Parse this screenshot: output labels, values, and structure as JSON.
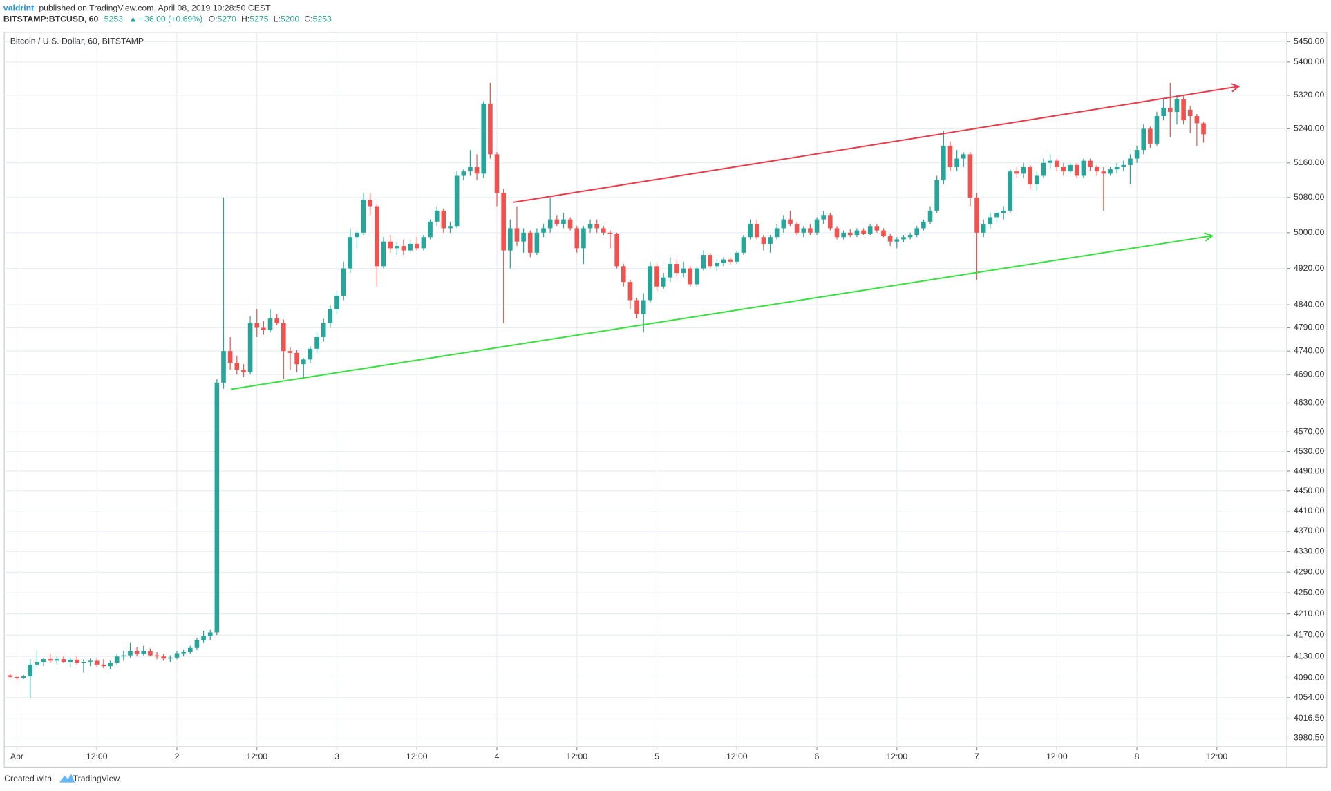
{
  "header": {
    "author": "valdrint",
    "published": "published on TradingView.com, April 08, 2019 10:28:50 CEST",
    "symbol": "BITSTAMP:BTCUSD, 60",
    "change": "▲ +36.00 (+0.69%)",
    "ohlc_labels": [
      "O:",
      "H:",
      "L:",
      "C:"
    ]
  },
  "footer": {
    "created": "Created with",
    "brand": "TradingView"
  },
  "chart_data": {
    "type": "candlestick",
    "title": "Bitcoin / U.S. Dollar, 60, BITSTAMP",
    "up_color": "#26a69a",
    "down_color": "#ef5350",
    "log_scale": true,
    "grid": true,
    "xlim": [
      -1.9,
      190.5
    ],
    "ylim": [
      3965,
      5473
    ],
    "xticks": [
      {
        "value": 0,
        "label": "Apr"
      },
      {
        "value": 12,
        "label": "12:00"
      },
      {
        "value": 24,
        "label": "2"
      },
      {
        "value": 36,
        "label": "12:00"
      },
      {
        "value": 48,
        "label": "3"
      },
      {
        "value": 60,
        "label": "12:00"
      },
      {
        "value": 72,
        "label": "4"
      },
      {
        "value": 84,
        "label": "12:00"
      },
      {
        "value": 96,
        "label": "5"
      },
      {
        "value": 108,
        "label": "12:00"
      },
      {
        "value": 120,
        "label": "6"
      },
      {
        "value": 132,
        "label": "12:00"
      },
      {
        "value": 144,
        "label": "7"
      },
      {
        "value": 156,
        "label": "12:00"
      },
      {
        "value": 168,
        "label": "8"
      },
      {
        "value": 180,
        "label": "12:00"
      }
    ],
    "yticks": [
      {
        "value": 5450,
        "label": "5450.00"
      },
      {
        "value": 5400,
        "label": "5400.00"
      },
      {
        "value": 5320,
        "label": "5320.00"
      },
      {
        "value": 5240,
        "label": "5240.00"
      },
      {
        "value": 5160,
        "label": "5160.00"
      },
      {
        "value": 5080,
        "label": "5080.00"
      },
      {
        "value": 5000,
        "label": "5000.00"
      },
      {
        "value": 4920,
        "label": "4920.00"
      },
      {
        "value": 4840,
        "label": "4840.00"
      },
      {
        "value": 4790,
        "label": "4790.00"
      },
      {
        "value": 4740,
        "label": "4740.00"
      },
      {
        "value": 4690,
        "label": "4690.00"
      },
      {
        "value": 4630,
        "label": "4630.00"
      },
      {
        "value": 4570,
        "label": "4570.00"
      },
      {
        "value": 4530,
        "label": "4530.00"
      },
      {
        "value": 4490,
        "label": "4490.00"
      },
      {
        "value": 4450,
        "label": "4450.00"
      },
      {
        "value": 4410,
        "label": "4410.00"
      },
      {
        "value": 4370,
        "label": "4370.00"
      },
      {
        "value": 4330,
        "label": "4330.00"
      },
      {
        "value": 4290,
        "label": "4290.00"
      },
      {
        "value": 4250,
        "label": "4250.00"
      },
      {
        "value": 4210,
        "label": "4210.00"
      },
      {
        "value": 4170,
        "label": "4170.00"
      },
      {
        "value": 4130,
        "label": "4130.00"
      },
      {
        "value": 4090,
        "label": "4090.00"
      },
      {
        "value": 4054,
        "label": "4054.00"
      },
      {
        "value": 4016.5,
        "label": "4016.50"
      },
      {
        "value": 3980.5,
        "label": "3980.50"
      }
    ],
    "trend_lines": [
      {
        "color": "#f23645",
        "points": [
          [
            74.5,
            5069
          ],
          [
            183.3,
            5341
          ]
        ]
      },
      {
        "color": "#33e33a",
        "points": [
          [
            32.1,
            4659
          ],
          [
            179.3,
            4993
          ]
        ]
      }
    ],
    "candles": [
      [
        -1,
        4095,
        4098,
        4090,
        4092
      ],
      [
        0,
        4092,
        4095,
        4085,
        4090
      ],
      [
        1,
        4090,
        4096,
        4088,
        4093
      ],
      [
        2,
        4093,
        4125,
        4054,
        4115
      ],
      [
        3,
        4115,
        4140,
        4110,
        4120
      ],
      [
        4,
        4120,
        4128,
        4112,
        4125
      ],
      [
        5,
        4125,
        4135,
        4118,
        4122
      ],
      [
        6,
        4122,
        4130,
        4115,
        4125
      ],
      [
        7,
        4125,
        4130,
        4118,
        4120
      ],
      [
        8,
        4120,
        4128,
        4110,
        4124
      ],
      [
        9,
        4124,
        4130,
        4115,
        4118
      ],
      [
        10,
        4118,
        4125,
        4100,
        4120
      ],
      [
        11,
        4120,
        4126,
        4112,
        4122
      ],
      [
        12,
        4122,
        4128,
        4110,
        4115
      ],
      [
        13,
        4115,
        4125,
        4108,
        4112
      ],
      [
        14,
        4112,
        4122,
        4106,
        4118
      ],
      [
        15,
        4118,
        4135,
        4115,
        4130
      ],
      [
        16,
        4130,
        4140,
        4122,
        4132
      ],
      [
        17,
        4132,
        4155,
        4128,
        4140
      ],
      [
        18,
        4140,
        4148,
        4130,
        4135
      ],
      [
        19,
        4135,
        4150,
        4132,
        4140
      ],
      [
        20,
        4140,
        4145,
        4130,
        4132
      ],
      [
        21,
        4132,
        4138,
        4125,
        4130
      ],
      [
        22,
        4130,
        4135,
        4122,
        4126
      ],
      [
        23,
        4126,
        4132,
        4120,
        4128
      ],
      [
        24,
        4128,
        4140,
        4125,
        4136
      ],
      [
        25,
        4136,
        4142,
        4130,
        4138
      ],
      [
        26,
        4138,
        4150,
        4135,
        4146
      ],
      [
        27,
        4146,
        4165,
        4142,
        4160
      ],
      [
        28,
        4160,
        4178,
        4155,
        4168
      ],
      [
        29,
        4168,
        4180,
        4160,
        4175
      ],
      [
        30,
        4175,
        4680,
        4170,
        4673
      ],
      [
        31,
        4673,
        5080,
        4660,
        4740
      ],
      [
        32,
        4740,
        4770,
        4700,
        4715
      ],
      [
        33,
        4715,
        4730,
        4690,
        4700
      ],
      [
        34,
        4700,
        4712,
        4685,
        4695
      ],
      [
        35,
        4695,
        4815,
        4690,
        4800
      ],
      [
        36,
        4800,
        4830,
        4770,
        4790
      ],
      [
        37,
        4790,
        4805,
        4775,
        4785
      ],
      [
        38,
        4785,
        4830,
        4780,
        4810
      ],
      [
        39,
        4810,
        4820,
        4795,
        4800
      ],
      [
        40,
        4800,
        4808,
        4680,
        4740
      ],
      [
        41,
        4740,
        4748,
        4700,
        4736
      ],
      [
        42,
        4736,
        4742,
        4695,
        4712
      ],
      [
        43,
        4712,
        4725,
        4680,
        4722
      ],
      [
        44,
        4722,
        4750,
        4715,
        4745
      ],
      [
        45,
        4745,
        4780,
        4735,
        4770
      ],
      [
        46,
        4770,
        4810,
        4760,
        4800
      ],
      [
        47,
        4800,
        4840,
        4790,
        4830
      ],
      [
        48,
        4830,
        4870,
        4820,
        4860
      ],
      [
        49,
        4860,
        4935,
        4850,
        4920
      ],
      [
        50,
        4920,
        5010,
        4910,
        4990
      ],
      [
        51,
        4990,
        5005,
        4965,
        5000
      ],
      [
        52,
        5000,
        5090,
        4995,
        5075
      ],
      [
        53,
        5075,
        5090,
        5040,
        5060
      ],
      [
        54,
        5060,
        5065,
        4880,
        4925
      ],
      [
        55,
        4925,
        4990,
        4920,
        4980
      ],
      [
        56,
        4980,
        4995,
        4955,
        4965
      ],
      [
        57,
        4965,
        4980,
        4950,
        4970
      ],
      [
        58,
        4970,
        4985,
        4950,
        4960
      ],
      [
        59,
        4960,
        4985,
        4955,
        4975
      ],
      [
        60,
        4975,
        4990,
        4960,
        4965
      ],
      [
        61,
        4965,
        4995,
        4960,
        4990
      ],
      [
        62,
        4990,
        5030,
        4985,
        5025
      ],
      [
        63,
        5025,
        5060,
        5015,
        5050
      ],
      [
        64,
        5050,
        5055,
        5000,
        5010
      ],
      [
        65,
        5010,
        5025,
        5000,
        5015
      ],
      [
        66,
        5015,
        5140,
        5010,
        5130
      ],
      [
        67,
        5130,
        5145,
        5120,
        5140
      ],
      [
        68,
        5140,
        5190,
        5130,
        5150
      ],
      [
        69,
        5150,
        5180,
        5120,
        5135
      ],
      [
        70,
        5135,
        5305,
        5125,
        5300
      ],
      [
        71,
        5300,
        5350,
        5170,
        5180
      ],
      [
        72,
        5180,
        5185,
        5060,
        5090
      ],
      [
        73,
        5090,
        5100,
        4800,
        4960
      ],
      [
        74,
        4960,
        5030,
        4920,
        5010
      ],
      [
        75,
        5010,
        5060,
        4970,
        4980
      ],
      [
        76,
        4980,
        5010,
        4955,
        5000
      ],
      [
        77,
        5000,
        5005,
        4945,
        4955
      ],
      [
        78,
        4955,
        5010,
        4950,
        5000
      ],
      [
        79,
        5000,
        5020,
        4990,
        5010
      ],
      [
        80,
        5010,
        5080,
        5000,
        5030
      ],
      [
        81,
        5030,
        5040,
        5015,
        5020
      ],
      [
        82,
        5020,
        5045,
        5010,
        5030
      ],
      [
        83,
        5030,
        5035,
        5005,
        5010
      ],
      [
        84,
        5010,
        5015,
        4955,
        4965
      ],
      [
        85,
        4965,
        5015,
        4930,
        5010
      ],
      [
        86,
        5010,
        5030,
        5000,
        5020
      ],
      [
        87,
        5020,
        5030,
        5000,
        5010
      ],
      [
        88,
        5010,
        5015,
        4995,
        5000
      ],
      [
        89,
        5000,
        5005,
        4965,
        4998
      ],
      [
        90,
        4998,
        5000,
        4920,
        4925
      ],
      [
        91,
        4925,
        4930,
        4880,
        4890
      ],
      [
        92,
        4890,
        4895,
        4830,
        4850
      ],
      [
        93,
        4850,
        4855,
        4810,
        4820
      ],
      [
        94,
        4820,
        4865,
        4780,
        4850
      ],
      [
        95,
        4850,
        4935,
        4845,
        4925
      ],
      [
        96,
        4925,
        4930,
        4870,
        4880
      ],
      [
        97,
        4880,
        4910,
        4875,
        4900
      ],
      [
        98,
        4900,
        4945,
        4890,
        4930
      ],
      [
        99,
        4930,
        4940,
        4900,
        4910
      ],
      [
        100,
        4910,
        4935,
        4900,
        4920
      ],
      [
        101,
        4920,
        4925,
        4880,
        4885
      ],
      [
        102,
        4885,
        4925,
        4880,
        4920
      ],
      [
        103,
        4920,
        4960,
        4915,
        4950
      ],
      [
        104,
        4950,
        4955,
        4920,
        4925
      ],
      [
        105,
        4925,
        4940,
        4915,
        4932
      ],
      [
        106,
        4932,
        4945,
        4925,
        4940
      ],
      [
        107,
        4940,
        4945,
        4928,
        4935
      ],
      [
        108,
        4935,
        4960,
        4930,
        4955
      ],
      [
        109,
        4955,
        4995,
        4950,
        4990
      ],
      [
        110,
        4990,
        5030,
        4985,
        5020
      ],
      [
        111,
        5020,
        5030,
        4985,
        4990
      ],
      [
        112,
        4990,
        4995,
        4960,
        4975
      ],
      [
        113,
        4975,
        4995,
        4955,
        4990
      ],
      [
        114,
        4990,
        5020,
        4985,
        5010
      ],
      [
        115,
        5010,
        5040,
        5000,
        5030
      ],
      [
        116,
        5030,
        5050,
        5015,
        5020
      ],
      [
        117,
        5020,
        5025,
        4995,
        5000
      ],
      [
        118,
        5000,
        5015,
        4990,
        5010
      ],
      [
        119,
        5010,
        5020,
        4995,
        5000
      ],
      [
        120,
        5000,
        5035,
        4995,
        5030
      ],
      [
        121,
        5030,
        5050,
        5020,
        5040
      ],
      [
        122,
        5040,
        5045,
        5005,
        5010
      ],
      [
        123,
        5010,
        5015,
        4985,
        4990
      ],
      [
        124,
        4990,
        5005,
        4985,
        5000
      ],
      [
        125,
        5000,
        5008,
        4990,
        4995
      ],
      [
        126,
        4995,
        5010,
        4990,
        5005
      ],
      [
        127,
        5005,
        5010,
        4995,
        4998
      ],
      [
        128,
        4998,
        5020,
        4995,
        5015
      ],
      [
        129,
        5015,
        5020,
        5000,
        5005
      ],
      [
        130,
        5005,
        5010,
        4990,
        4992
      ],
      [
        131,
        4992,
        4998,
        4970,
        4980
      ],
      [
        132,
        4980,
        4990,
        4965,
        4985
      ],
      [
        133,
        4985,
        4995,
        4978,
        4990
      ],
      [
        134,
        4990,
        5000,
        4985,
        4995
      ],
      [
        135,
        4995,
        5015,
        4990,
        5010
      ],
      [
        136,
        5010,
        5030,
        5005,
        5025
      ],
      [
        137,
        5025,
        5060,
        5020,
        5050
      ],
      [
        138,
        5050,
        5130,
        5045,
        5120
      ],
      [
        139,
        5120,
        5235,
        5110,
        5200
      ],
      [
        140,
        5200,
        5210,
        5140,
        5150
      ],
      [
        141,
        5150,
        5190,
        5140,
        5170
      ],
      [
        142,
        5170,
        5185,
        5150,
        5180
      ],
      [
        143,
        5180,
        5185,
        5060,
        5080
      ],
      [
        144,
        5080,
        5090,
        4895,
        5000
      ],
      [
        145,
        5000,
        5030,
        4990,
        5020
      ],
      [
        146,
        5020,
        5045,
        5010,
        5035
      ],
      [
        147,
        5035,
        5050,
        5025,
        5045
      ],
      [
        148,
        5045,
        5060,
        5030,
        5050
      ],
      [
        149,
        5050,
        5145,
        5045,
        5140
      ],
      [
        150,
        5140,
        5150,
        5125,
        5135
      ],
      [
        151,
        5135,
        5160,
        5125,
        5150
      ],
      [
        152,
        5150,
        5155,
        5100,
        5110
      ],
      [
        153,
        5110,
        5140,
        5095,
        5130
      ],
      [
        154,
        5130,
        5170,
        5125,
        5160
      ],
      [
        155,
        5160,
        5180,
        5145,
        5165
      ],
      [
        156,
        5165,
        5170,
        5140,
        5150
      ],
      [
        157,
        5150,
        5160,
        5130,
        5140
      ],
      [
        158,
        5140,
        5160,
        5135,
        5155
      ],
      [
        159,
        5155,
        5160,
        5125,
        5130
      ],
      [
        160,
        5130,
        5170,
        5125,
        5165
      ],
      [
        161,
        5165,
        5170,
        5140,
        5150
      ],
      [
        162,
        5150,
        5155,
        5130,
        5140
      ],
      [
        163,
        5140,
        5150,
        5050,
        5135
      ],
      [
        164,
        5135,
        5150,
        5130,
        5145
      ],
      [
        165,
        5145,
        5160,
        5135,
        5150
      ],
      [
        166,
        5150,
        5165,
        5140,
        5155
      ],
      [
        167,
        5155,
        5180,
        5110,
        5170
      ],
      [
        168,
        5170,
        5200,
        5160,
        5190
      ],
      [
        169,
        5190,
        5250,
        5180,
        5240
      ],
      [
        170,
        5240,
        5245,
        5195,
        5205
      ],
      [
        171,
        5205,
        5280,
        5200,
        5270
      ],
      [
        172,
        5270,
        5310,
        5260,
        5290
      ],
      [
        173,
        5290,
        5350,
        5220,
        5280
      ],
      [
        174,
        5280,
        5320,
        5250,
        5310
      ],
      [
        175,
        5310,
        5320,
        5250,
        5260
      ],
      [
        176,
        5285,
        5295,
        5230,
        5270
      ],
      [
        177,
        5270,
        5275,
        5200,
        5253
      ],
      [
        178,
        5252.94,
        5256.22,
        5207.51,
        5226.85
      ]
    ]
  }
}
